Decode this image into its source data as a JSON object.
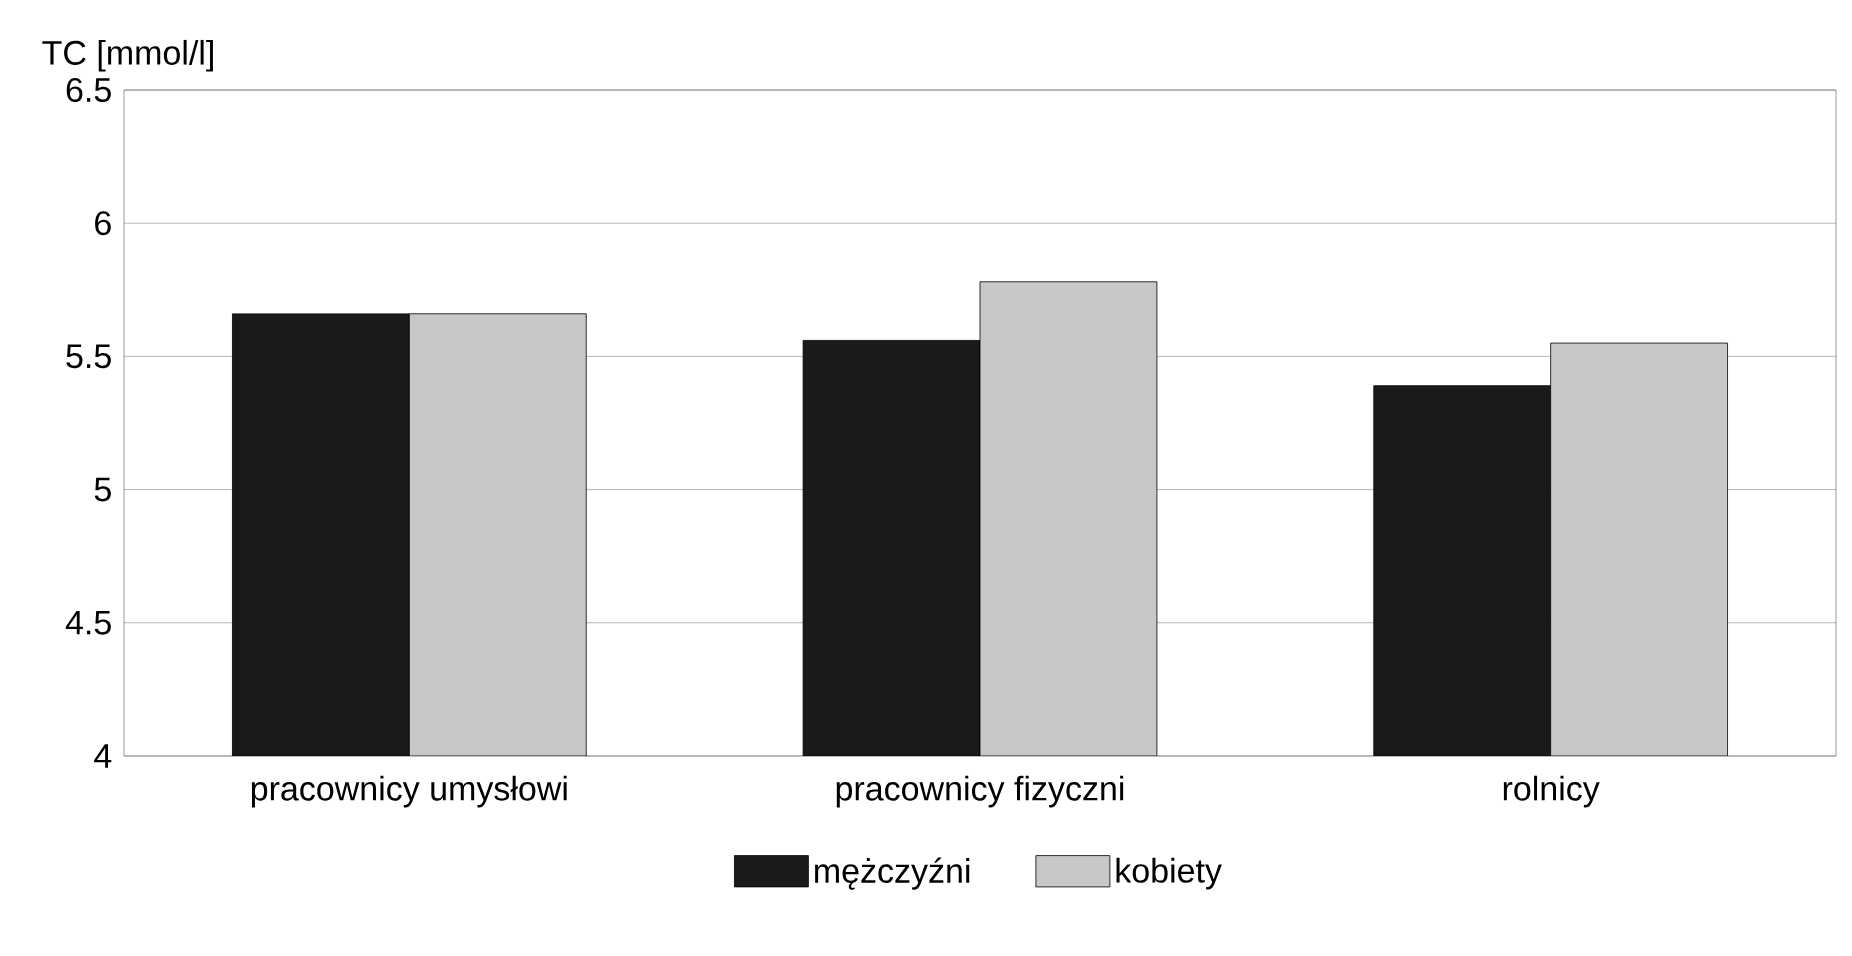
{
  "chart_data": {
    "type": "bar",
    "ylabel": "TC [mmol/l]",
    "categories": [
      "pracownicy umysłowi",
      "pracownicy fizyczni",
      "rolnicy"
    ],
    "series": [
      {
        "name": "mężczyźni",
        "color": "#1a1a1a",
        "values": [
          5.66,
          5.56,
          5.39
        ]
      },
      {
        "name": "kobiety",
        "color": "#c8c8c8",
        "values": [
          5.66,
          5.78,
          5.55
        ]
      }
    ],
    "ylim": [
      4,
      6.5
    ],
    "yticks": [
      4,
      4.5,
      5,
      5.5,
      6,
      6.5
    ],
    "grid": "y",
    "legend": "bottom"
  }
}
